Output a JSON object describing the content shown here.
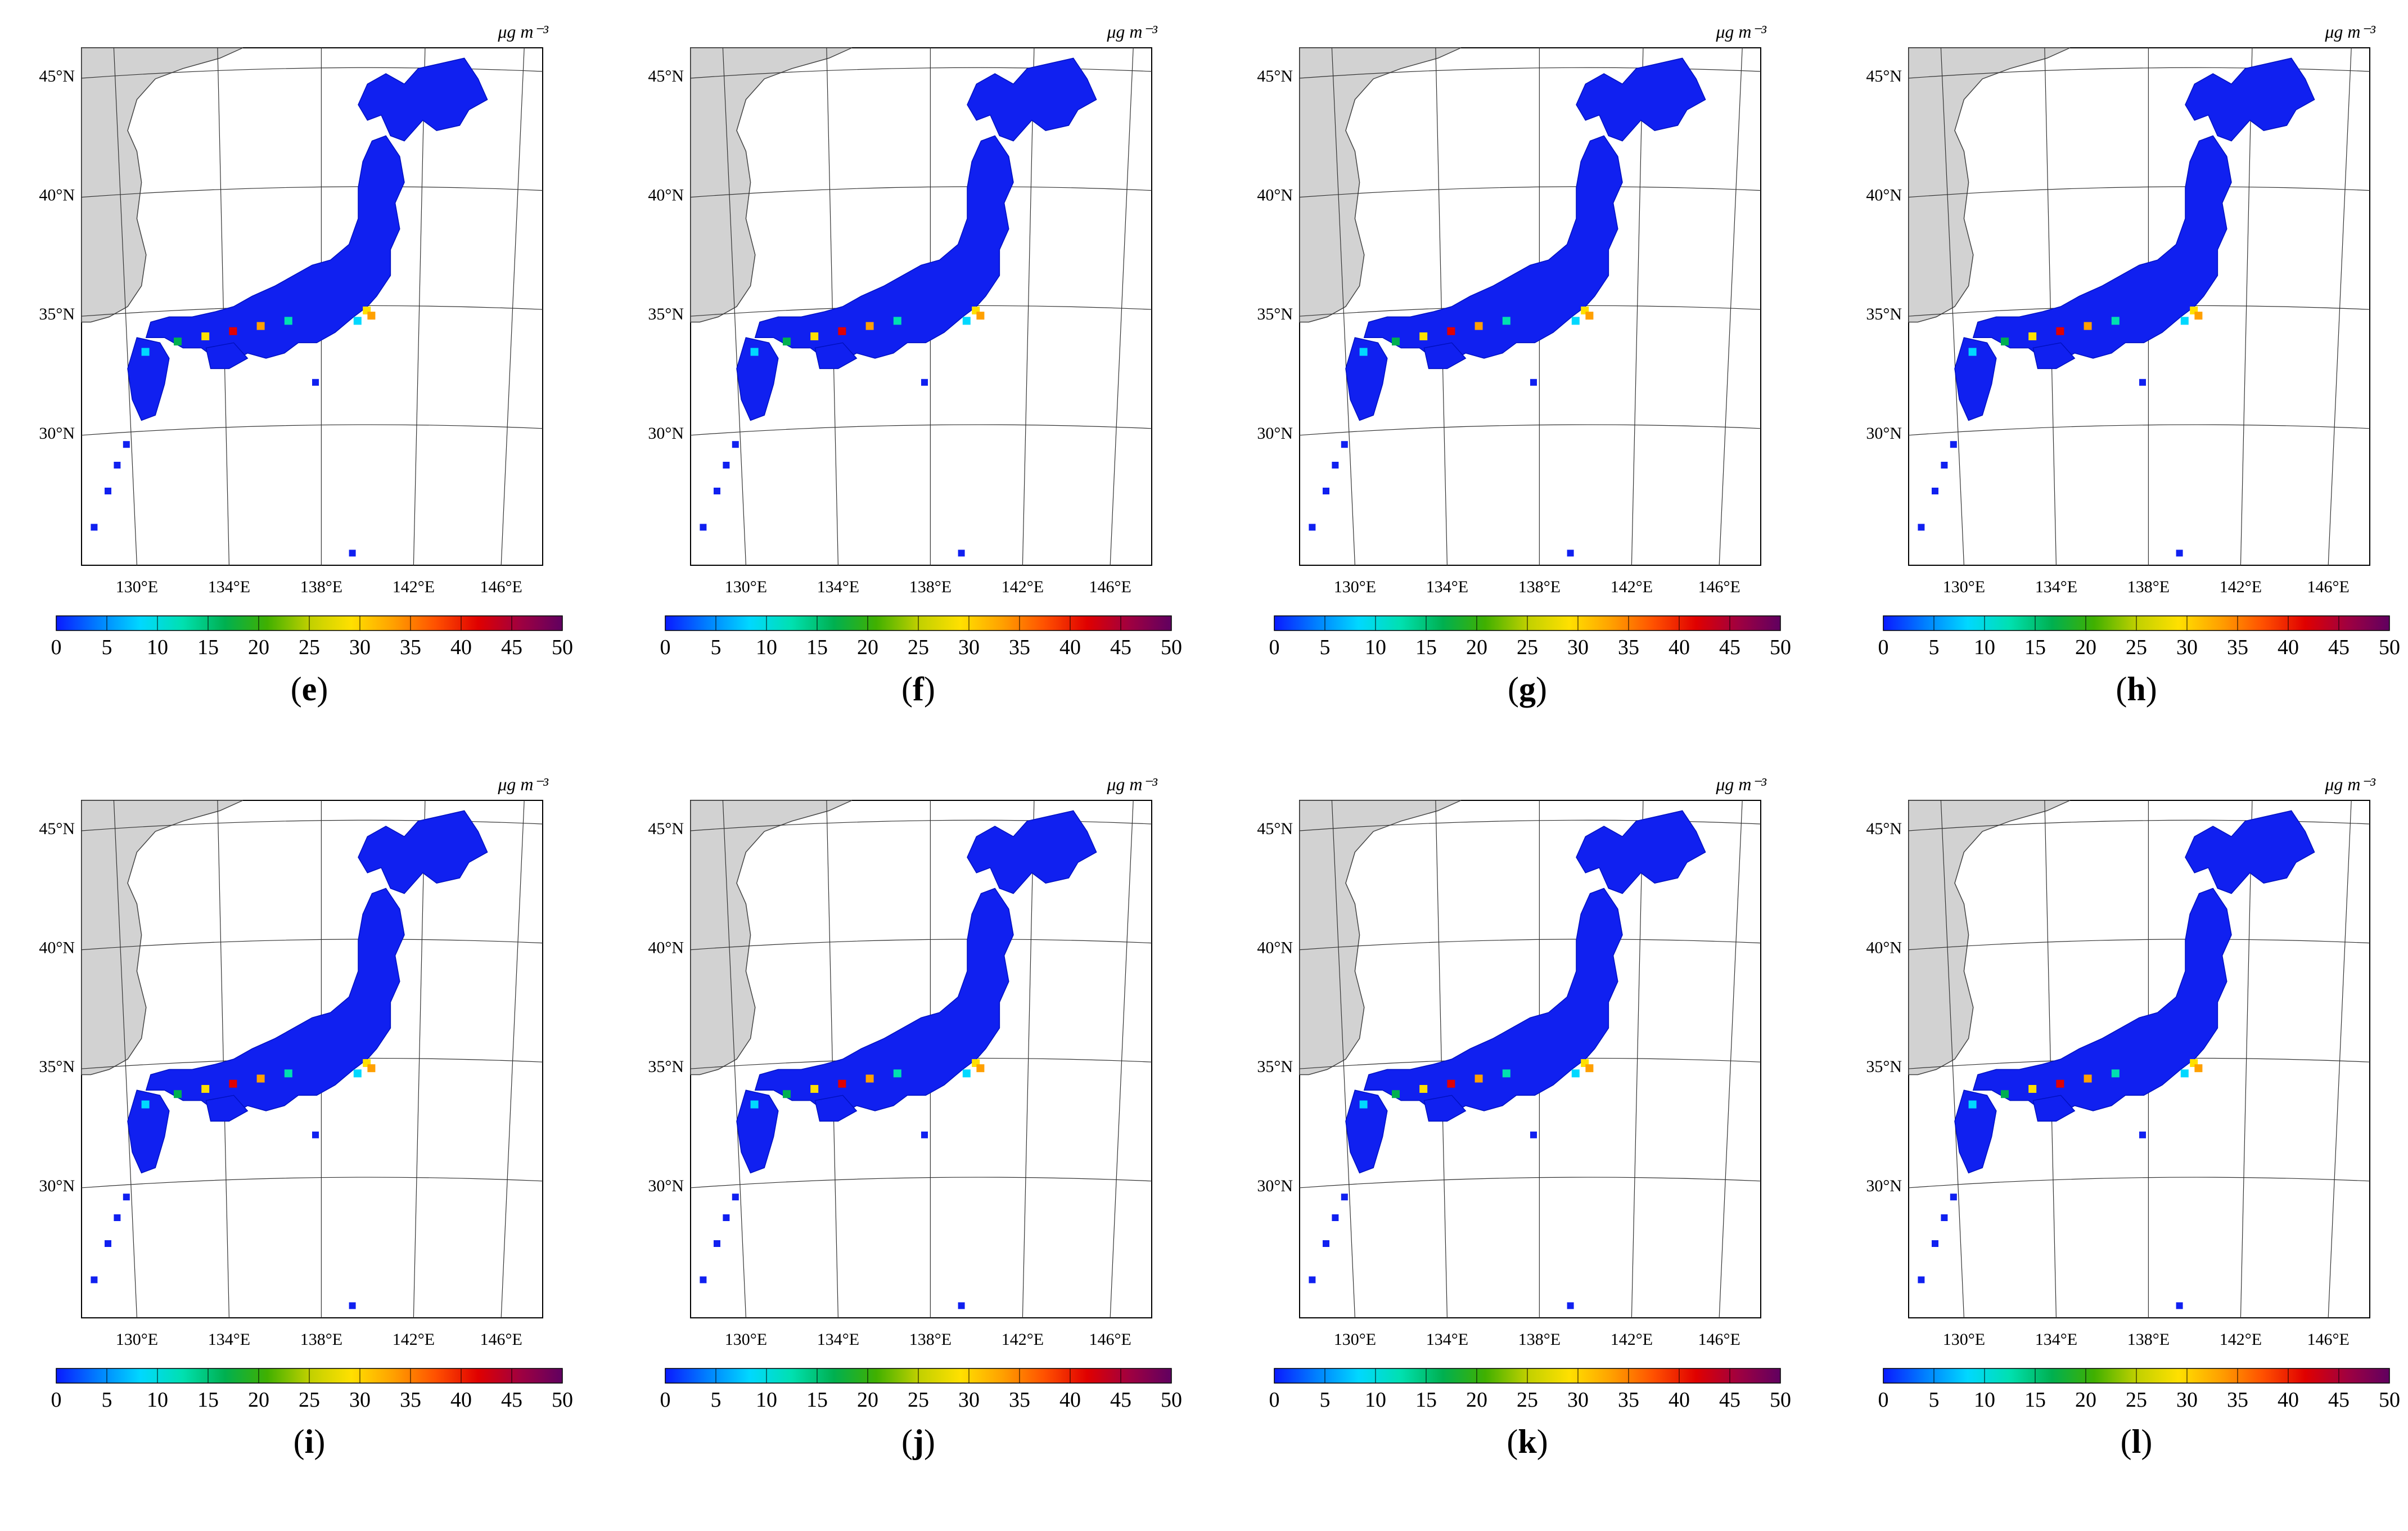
{
  "unit": "μg m⁻³",
  "lat_labels": [
    "45°N",
    "40°N",
    "35°N",
    "30°N"
  ],
  "lon_labels": [
    "130°E",
    "134°E",
    "138°E",
    "142°E",
    "146°E"
  ],
  "colorbar": {
    "ticks": [
      "0",
      "5",
      "10",
      "15",
      "20",
      "25",
      "30",
      "35",
      "40",
      "45",
      "50"
    ],
    "range": [
      0,
      50
    ],
    "colors": [
      "#0a1aff",
      "#0080ff",
      "#00d8ff",
      "#00e0b0",
      "#00b050",
      "#40b000",
      "#c0d000",
      "#ffe000",
      "#ffa000",
      "#ff5000",
      "#e00000",
      "#a00040",
      "#600060"
    ]
  },
  "land_color": "#d2d2d2",
  "panels": [
    {
      "id": "e",
      "label": "e"
    },
    {
      "id": "f",
      "label": "f"
    },
    {
      "id": "g",
      "label": "g"
    },
    {
      "id": "h",
      "label": "h"
    },
    {
      "id": "i",
      "label": "i"
    },
    {
      "id": "j",
      "label": "j"
    },
    {
      "id": "k",
      "label": "k"
    },
    {
      "id": "l",
      "label": "l"
    }
  ]
}
